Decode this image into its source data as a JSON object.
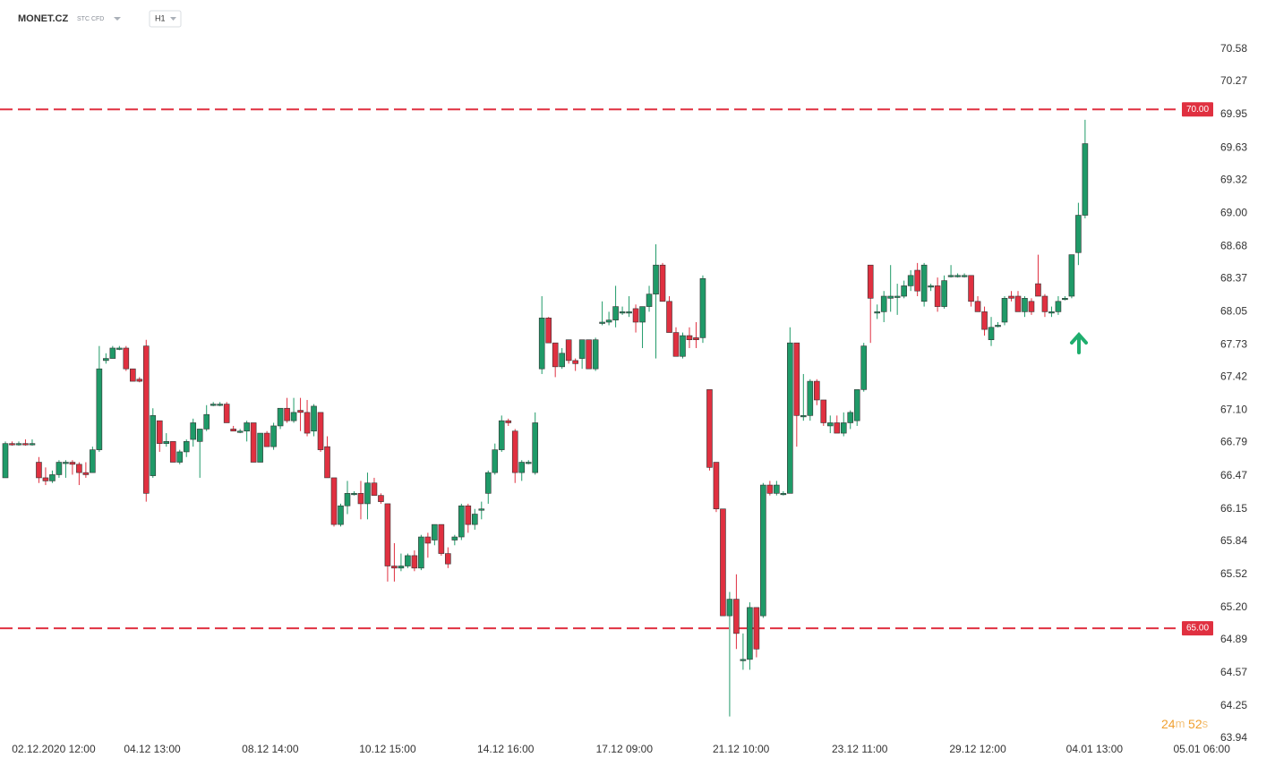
{
  "chart_data": {
    "type": "candlestick",
    "title": "MONET.CZ",
    "subtitle": "STC CFD",
    "timeframe": "H1",
    "up_color": "#1f9a68",
    "down_color": "#e03040",
    "grid": false,
    "ylim": [
      63.94,
      70.58
    ],
    "yticks": [
      70.58,
      70.27,
      69.95,
      69.63,
      69.32,
      {
        "value": 69,
        "label": "69.00"
      },
      68.68,
      68.37,
      68.05,
      67.73,
      67.42,
      {
        "value": 67.1,
        "label": "67.10"
      },
      66.79,
      66.47,
      66.15,
      65.84,
      65.52,
      {
        "value": 65.2,
        "label": "65.20"
      },
      64.89,
      64.57,
      64.25,
      63.94
    ],
    "xticks": [
      {
        "value": 7.2,
        "label": "02.12.2020 12:00"
      },
      {
        "value": 21.9,
        "label": "04.12 13:00"
      },
      {
        "value": 39.5,
        "label": "08.12 14:00"
      },
      {
        "value": 57.0,
        "label": "10.12 15:00"
      },
      {
        "value": 74.6,
        "label": "14.12 16:00"
      },
      {
        "value": 92.3,
        "label": "17.12 09:00"
      },
      {
        "value": 109.7,
        "label": "21.12 10:00"
      },
      {
        "value": 127.4,
        "label": "23.12 11:00"
      },
      {
        "value": 145.0,
        "label": "29.12 12:00"
      },
      {
        "value": 162.4,
        "label": "04.01 13:00"
      },
      {
        "value": 178.4,
        "label": "05.01 06:00"
      }
    ],
    "levels": [
      {
        "value": 70,
        "label": "70.00",
        "color": "#e03040"
      },
      {
        "value": 65,
        "label": "65.00",
        "color": "#e03040"
      }
    ],
    "countdown": {
      "minutes": "24",
      "minutes_unit": "m",
      "seconds": "52",
      "seconds_unit": "s"
    },
    "ohlc": [
      [
        66.45,
        66.8,
        66.45,
        66.78
      ],
      [
        66.78,
        66.8,
        66.76,
        66.77
      ],
      [
        66.77,
        66.8,
        66.76,
        66.78
      ],
      [
        66.78,
        66.82,
        66.76,
        66.77
      ],
      [
        66.77,
        66.82,
        66.76,
        66.78
      ],
      [
        66.6,
        66.65,
        66.4,
        66.45
      ],
      [
        66.45,
        66.55,
        66.38,
        66.42
      ],
      [
        66.42,
        66.52,
        66.4,
        66.48
      ],
      [
        66.48,
        66.62,
        66.45,
        66.6
      ],
      [
        66.6,
        66.62,
        66.45,
        66.6
      ],
      [
        66.6,
        66.62,
        66.48,
        66.58
      ],
      [
        66.58,
        66.6,
        66.38,
        66.5
      ],
      [
        66.5,
        66.6,
        66.45,
        66.48
      ],
      [
        66.5,
        66.75,
        66.5,
        66.72
      ],
      [
        66.72,
        67.72,
        66.7,
        67.5
      ],
      [
        67.58,
        67.65,
        67.55,
        67.6
      ],
      [
        67.6,
        67.72,
        67.6,
        67.7
      ],
      [
        67.7,
        67.72,
        67.68,
        67.7
      ],
      [
        67.7,
        67.72,
        67.48,
        67.5
      ],
      [
        67.5,
        67.5,
        67.38,
        67.38
      ],
      [
        67.4,
        67.42,
        67.37,
        67.38
      ],
      [
        67.72,
        67.78,
        66.22,
        66.3
      ],
      [
        66.47,
        67.12,
        66.45,
        67.05
      ],
      [
        67.0,
        67.0,
        66.7,
        66.78
      ],
      [
        66.78,
        66.88,
        66.75,
        66.8
      ],
      [
        66.8,
        66.8,
        66.6,
        66.6
      ],
      [
        66.6,
        66.72,
        66.58,
        66.7
      ],
      [
        66.7,
        66.82,
        66.65,
        66.8
      ],
      [
        66.82,
        67.02,
        66.75,
        66.98
      ],
      [
        66.8,
        66.92,
        66.45,
        66.92
      ],
      [
        66.92,
        67.15,
        66.9,
        67.06
      ],
      [
        67.15,
        67.18,
        67.14,
        67.16
      ],
      [
        67.16,
        67.18,
        67.14,
        67.16
      ],
      [
        67.16,
        67.18,
        66.98,
        66.98
      ],
      [
        66.92,
        66.95,
        66.9,
        66.9
      ],
      [
        66.9,
        66.92,
        66.88,
        66.9
      ],
      [
        66.9,
        67.0,
        66.8,
        66.98
      ],
      [
        66.98,
        66.98,
        66.6,
        66.6
      ],
      [
        66.6,
        66.88,
        66.6,
        66.88
      ],
      [
        66.88,
        66.9,
        66.75,
        66.75
      ],
      [
        66.75,
        66.98,
        66.72,
        66.95
      ],
      [
        66.95,
        67.12,
        66.92,
        67.12
      ],
      [
        67.12,
        67.22,
        66.98,
        67.0
      ],
      [
        67.0,
        67.22,
        66.98,
        67.08
      ],
      [
        67.1,
        67.22,
        66.9,
        67.08
      ],
      [
        67.08,
        67.2,
        66.85,
        66.88
      ],
      [
        66.9,
        67.16,
        66.85,
        67.14
      ],
      [
        67.08,
        67.08,
        66.7,
        66.72
      ],
      [
        66.75,
        66.85,
        66.45,
        66.45
      ],
      [
        66.45,
        66.45,
        65.98,
        66.0
      ],
      [
        66.0,
        66.2,
        65.98,
        66.18
      ],
      [
        66.18,
        66.42,
        66.1,
        66.3
      ],
      [
        66.3,
        66.32,
        66.28,
        66.3
      ],
      [
        66.3,
        66.42,
        66.05,
        66.2
      ],
      [
        66.2,
        66.5,
        66.05,
        66.4
      ],
      [
        66.4,
        66.45,
        66.28,
        66.28
      ],
      [
        66.28,
        66.3,
        66.2,
        66.22
      ],
      [
        66.2,
        66.2,
        65.45,
        65.6
      ],
      [
        65.6,
        65.82,
        65.45,
        65.58
      ],
      [
        65.58,
        65.72,
        65.55,
        65.6
      ],
      [
        65.6,
        65.72,
        65.58,
        65.7
      ],
      [
        65.7,
        65.75,
        65.55,
        65.58
      ],
      [
        65.58,
        65.9,
        65.56,
        65.88
      ],
      [
        65.88,
        65.92,
        65.68,
        65.82
      ],
      [
        65.85,
        66.0,
        65.8,
        66.0
      ],
      [
        66.0,
        66.0,
        65.7,
        65.72
      ],
      [
        65.72,
        65.78,
        65.58,
        65.62
      ],
      [
        65.85,
        65.9,
        65.8,
        65.88
      ],
      [
        65.88,
        66.2,
        65.85,
        66.18
      ],
      [
        66.18,
        66.2,
        65.92,
        66.0
      ],
      [
        66.0,
        66.15,
        65.95,
        66.1
      ],
      [
        66.15,
        66.22,
        66.05,
        66.15
      ],
      [
        66.3,
        66.52,
        66.2,
        66.5
      ],
      [
        66.5,
        66.78,
        66.48,
        66.72
      ],
      [
        66.72,
        67.05,
        66.7,
        67.0
      ],
      [
        67.0,
        67.02,
        66.95,
        66.98
      ],
      [
        66.9,
        66.92,
        66.4,
        66.5
      ],
      [
        66.5,
        66.62,
        66.42,
        66.6
      ],
      [
        66.6,
        66.62,
        66.58,
        66.6
      ],
      [
        66.5,
        67.08,
        66.48,
        66.98
      ],
      [
        67.5,
        68.2,
        67.45,
        67.99
      ],
      [
        67.99,
        68.0,
        67.75,
        67.75
      ],
      [
        67.75,
        67.75,
        67.42,
        67.52
      ],
      [
        67.52,
        67.7,
        67.5,
        67.65
      ],
      [
        67.78,
        67.78,
        67.55,
        67.58
      ],
      [
        67.58,
        67.6,
        67.48,
        67.55
      ],
      [
        67.6,
        67.78,
        67.5,
        67.78
      ],
      [
        67.78,
        67.78,
        67.5,
        67.5
      ],
      [
        67.5,
        67.8,
        67.48,
        67.78
      ],
      [
        67.95,
        68.15,
        67.92,
        67.95
      ],
      [
        67.95,
        68.05,
        67.92,
        67.97
      ],
      [
        67.97,
        68.3,
        67.9,
        68.1
      ],
      [
        68.05,
        68.1,
        68.02,
        68.05
      ],
      [
        68.05,
        68.2,
        68.0,
        68.05
      ],
      [
        68.08,
        68.12,
        67.85,
        67.95
      ],
      [
        67.95,
        68.1,
        67.7,
        68.1
      ],
      [
        68.1,
        68.3,
        68.05,
        68.22
      ],
      [
        68.22,
        68.7,
        67.6,
        68.5
      ],
      [
        68.5,
        68.52,
        68.15,
        68.15
      ],
      [
        68.15,
        68.2,
        67.85,
        67.85
      ],
      [
        67.85,
        67.9,
        67.62,
        67.62
      ],
      [
        67.62,
        67.85,
        67.6,
        67.82
      ],
      [
        67.82,
        67.9,
        67.7,
        67.78
      ],
      [
        67.8,
        67.95,
        67.7,
        67.78
      ],
      [
        67.8,
        68.4,
        67.75,
        68.37
      ],
      [
        67.3,
        67.3,
        66.52,
        66.55
      ],
      [
        66.6,
        66.6,
        66.12,
        66.15
      ],
      [
        66.15,
        66.15,
        65.12,
        65.12
      ],
      [
        65.12,
        65.35,
        64.15,
        65.28
      ],
      [
        65.28,
        65.52,
        64.8,
        64.95
      ],
      [
        64.7,
        64.95,
        64.6,
        64.7
      ],
      [
        64.7,
        65.25,
        64.6,
        65.2
      ],
      [
        65.2,
        65.2,
        64.72,
        64.8
      ],
      [
        65.12,
        66.4,
        65.1,
        66.38
      ],
      [
        66.38,
        66.42,
        66.28,
        66.3
      ],
      [
        66.3,
        66.42,
        66.28,
        66.38
      ],
      [
        66.3,
        66.32,
        66.28,
        66.3
      ],
      [
        66.3,
        67.9,
        66.3,
        67.75
      ],
      [
        67.75,
        67.75,
        66.75,
        67.05
      ],
      [
        67.05,
        67.45,
        67.0,
        67.05
      ],
      [
        67.05,
        67.4,
        67.0,
        67.38
      ],
      [
        67.38,
        67.4,
        67.15,
        67.2
      ],
      [
        67.2,
        67.2,
        66.95,
        66.98
      ],
      [
        66.95,
        67.05,
        66.88,
        66.98
      ],
      [
        66.98,
        67.05,
        66.9,
        66.88
      ],
      [
        66.88,
        67.08,
        66.85,
        66.98
      ],
      [
        66.98,
        67.1,
        66.92,
        67.08
      ],
      [
        67.0,
        67.3,
        66.95,
        67.3
      ],
      [
        67.3,
        67.75,
        67.28,
        67.72
      ],
      [
        68.5,
        68.5,
        67.75,
        68.18
      ],
      [
        68.05,
        68.12,
        67.98,
        68.05
      ],
      [
        68.05,
        68.25,
        67.95,
        68.2
      ],
      [
        68.18,
        68.5,
        68.05,
        68.2
      ],
      [
        68.2,
        68.32,
        68.02,
        68.2
      ],
      [
        68.2,
        68.35,
        68.18,
        68.3
      ],
      [
        68.3,
        68.45,
        68.25,
        68.4
      ],
      [
        68.45,
        68.52,
        68.2,
        68.25
      ],
      [
        68.15,
        68.52,
        68.1,
        68.5
      ],
      [
        68.3,
        68.32,
        68.25,
        68.3
      ],
      [
        68.3,
        68.38,
        68.05,
        68.1
      ],
      [
        68.1,
        68.4,
        68.08,
        68.35
      ],
      [
        68.4,
        68.5,
        68.38,
        68.4
      ],
      [
        68.4,
        68.42,
        68.38,
        68.4
      ],
      [
        68.4,
        68.42,
        68.38,
        68.4
      ],
      [
        68.4,
        68.4,
        68.1,
        68.15
      ],
      [
        68.15,
        68.2,
        68.05,
        68.05
      ],
      [
        68.05,
        68.1,
        67.82,
        67.88
      ],
      [
        67.78,
        68.0,
        67.72,
        67.9
      ],
      [
        67.92,
        67.95,
        67.9,
        67.92
      ],
      [
        67.95,
        68.2,
        67.92,
        68.18
      ],
      [
        68.2,
        68.25,
        68.15,
        68.18
      ],
      [
        68.2,
        68.25,
        68.05,
        68.05
      ],
      [
        68.05,
        68.2,
        68.0,
        68.18
      ],
      [
        68.15,
        68.18,
        68.02,
        68.05
      ],
      [
        68.32,
        68.6,
        68.2,
        68.2
      ],
      [
        68.2,
        68.22,
        68.0,
        68.05
      ],
      [
        68.05,
        68.1,
        68.0,
        68.05
      ],
      [
        68.05,
        68.2,
        68.02,
        68.15
      ],
      [
        68.18,
        68.2,
        68.16,
        68.18
      ],
      [
        68.2,
        68.6,
        68.18,
        68.6
      ],
      [
        68.62,
        69.1,
        68.5,
        68.98
      ],
      [
        68.98,
        69.9,
        68.95,
        69.67
      ]
    ]
  }
}
